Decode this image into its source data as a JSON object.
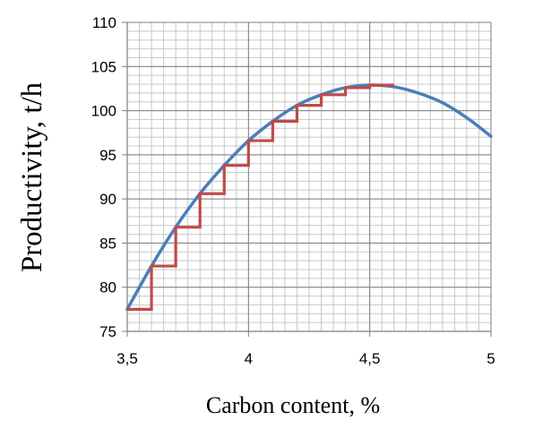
{
  "chart_data": {
    "type": "line",
    "title": "",
    "xlabel": "Carbon content, %",
    "ylabel": "Productivity, t/h",
    "xlim": [
      3.5,
      5
    ],
    "ylim": [
      75,
      110
    ],
    "x_ticks": [
      3.5,
      4,
      4.5,
      5
    ],
    "x_tick_labels": [
      "3,5",
      "4",
      "4,5",
      "5"
    ],
    "y_ticks": [
      75,
      80,
      85,
      90,
      95,
      100,
      105,
      110
    ],
    "y_tick_labels": [
      "75",
      "80",
      "85",
      "90",
      "95",
      "100",
      "105",
      "110"
    ],
    "grid": true,
    "legend": "none",
    "series": [
      {
        "kind": "curve",
        "color": "#4a7ebb",
        "x": [
          3.5,
          3.6,
          3.7,
          3.8,
          3.9,
          4.0,
          4.1,
          4.2,
          4.3,
          4.4,
          4.5,
          4.6,
          4.7,
          4.8,
          4.9,
          5.0
        ],
        "y": [
          77.5,
          82.4,
          86.8,
          90.6,
          93.8,
          96.6,
          98.8,
          100.6,
          101.8,
          102.6,
          102.9,
          102.7,
          102.0,
          100.9,
          99.2,
          97.1
        ]
      },
      {
        "kind": "step",
        "color": "#be4b48",
        "x": [
          3.5,
          3.6,
          3.7,
          3.8,
          3.9,
          4.0,
          4.1,
          4.2,
          4.3,
          4.4,
          4.5,
          4.6
        ],
        "y": [
          77.5,
          82.4,
          86.8,
          90.6,
          93.8,
          96.6,
          98.8,
          100.6,
          101.8,
          102.6,
          102.9,
          102.9
        ]
      }
    ]
  }
}
